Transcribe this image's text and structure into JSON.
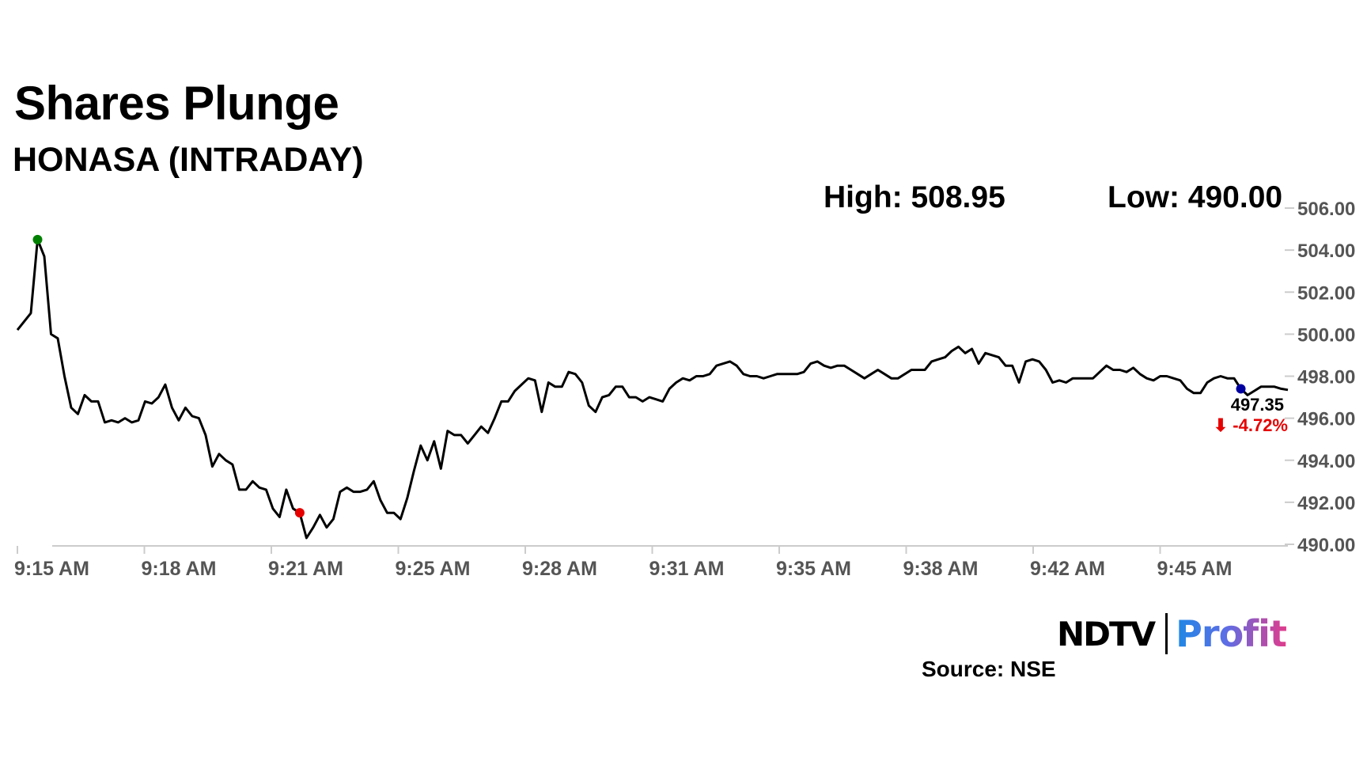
{
  "header": {
    "title": "Shares Plunge",
    "subtitle": "HONASA (INTRADAY)"
  },
  "stats": {
    "high_label": "High: 508.95",
    "low_label": "Low: 490.00"
  },
  "last": {
    "price": "497.35",
    "change": "⬇ -4.72%"
  },
  "logo": {
    "ndtv": "NDTV",
    "profit": "Profit"
  },
  "source": "Source: NSE",
  "colors": {
    "line": "#000000",
    "high_marker": "#008000",
    "low_marker": "#e60000",
    "last_marker": "#0000a0",
    "change": "#e60000",
    "axis": "#cccccc"
  },
  "chart_data": {
    "type": "line",
    "title": "HONASA (INTRADAY)",
    "xlabel": "",
    "ylabel": "",
    "ylim": [
      490,
      506
    ],
    "yticks": [
      "506.00",
      "504.00",
      "502.00",
      "500.00",
      "498.00",
      "496.00",
      "494.00",
      "492.00",
      "490.00"
    ],
    "xticks": [
      "9:15 AM",
      "9:18 AM",
      "9:21 AM",
      "9:25 AM",
      "9:28 AM",
      "9:31 AM",
      "9:35 AM",
      "9:38 AM",
      "9:42 AM",
      "9:45 AM"
    ],
    "grid": false,
    "x_start": "9:15 AM",
    "x_end": "9:48 AM",
    "markers": [
      {
        "name": "day high point",
        "index": 3
      },
      {
        "name": "day low point",
        "index": 42
      },
      {
        "name": "last price point",
        "index": 182
      }
    ],
    "values": [
      500.2,
      500.6,
      501.0,
      504.5,
      503.7,
      500.0,
      499.8,
      498.0,
      496.5,
      496.2,
      497.1,
      496.8,
      496.8,
      495.8,
      495.9,
      495.8,
      496.0,
      495.8,
      495.9,
      496.8,
      496.7,
      497.0,
      497.6,
      496.5,
      495.9,
      496.5,
      496.1,
      496.0,
      495.2,
      493.7,
      494.3,
      494.0,
      493.8,
      492.6,
      492.6,
      493.0,
      492.7,
      492.6,
      491.7,
      491.3,
      492.6,
      491.7,
      491.5,
      490.3,
      490.8,
      491.4,
      490.8,
      491.2,
      492.5,
      492.7,
      492.5,
      492.5,
      492.6,
      493.0,
      492.1,
      491.5,
      491.5,
      491.2,
      492.2,
      493.5,
      494.7,
      494.0,
      494.9,
      493.6,
      495.4,
      495.2,
      495.2,
      494.8,
      495.2,
      495.6,
      495.3,
      496.0,
      496.8,
      496.8,
      497.3,
      497.6,
      497.9,
      497.8,
      496.3,
      497.7,
      497.5,
      497.5,
      498.2,
      498.1,
      497.7,
      496.6,
      496.3,
      497.0,
      497.1,
      497.5,
      497.5,
      497.0,
      497.0,
      496.8,
      497.0,
      496.9,
      496.8,
      497.4,
      497.7,
      497.9,
      497.8,
      498.0,
      498.0,
      498.1,
      498.5,
      498.6,
      498.7,
      498.5,
      498.1,
      498.0,
      498.0,
      497.9,
      498.0,
      498.1,
      498.1,
      498.1,
      498.1,
      498.2,
      498.6,
      498.7,
      498.5,
      498.4,
      498.5,
      498.5,
      498.3,
      498.1,
      497.9,
      498.1,
      498.3,
      498.1,
      497.9,
      497.9,
      498.1,
      498.3,
      498.3,
      498.3,
      498.7,
      498.8,
      498.9,
      499.2,
      499.4,
      499.1,
      499.3,
      498.6,
      499.1,
      499.0,
      498.9,
      498.5,
      498.5,
      497.7,
      498.7,
      498.8,
      498.7,
      498.3,
      497.7,
      497.8,
      497.7,
      497.9,
      497.9,
      497.9,
      497.9,
      498.2,
      498.5,
      498.3,
      498.3,
      498.2,
      498.4,
      498.1,
      497.9,
      497.8,
      498.0,
      498.0,
      497.9,
      497.8,
      497.4,
      497.2,
      497.2,
      497.7,
      497.9,
      498.0,
      497.9,
      497.9,
      497.4,
      497.1,
      497.3,
      497.5,
      497.5,
      497.5,
      497.4,
      497.35
    ]
  }
}
